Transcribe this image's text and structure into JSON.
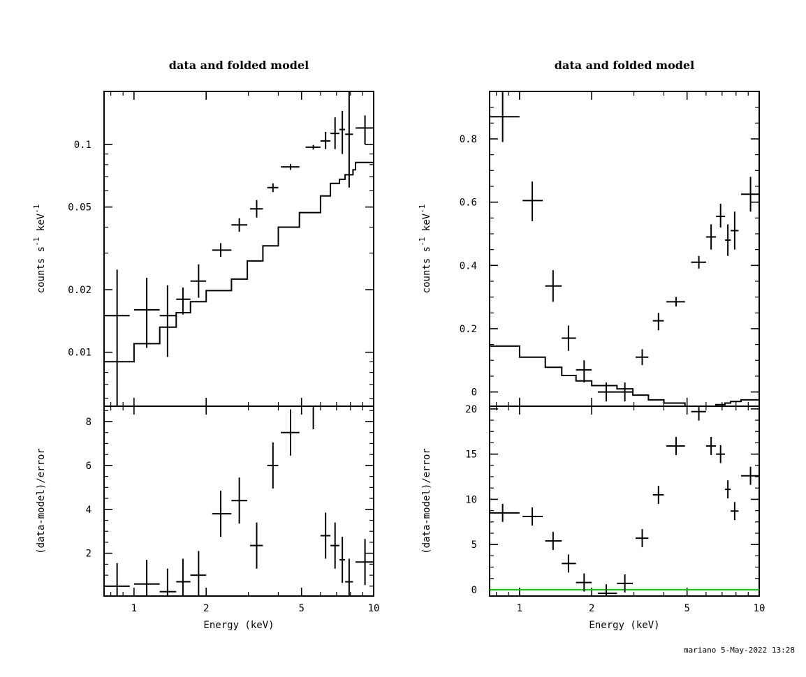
{
  "footer": "mariano  5-May-2022 13:28",
  "chart_data": [
    {
      "type": "scatter",
      "title": "data and folded model",
      "xlabel": "",
      "ylabel": "counts s^-1 keV^-1",
      "xscale": "log",
      "yscale": "log",
      "xlim": [
        0.75,
        10
      ],
      "ylim": [
        0.0055,
        0.18
      ],
      "x_ticks": [],
      "y_ticks": [
        "0.01",
        "0.02",
        "0.05",
        "0.1"
      ],
      "y_tick_values": [
        0.01,
        0.02,
        0.05,
        0.1
      ],
      "data": [
        {
          "x": 0.85,
          "xlo": 0.75,
          "xhi": 0.96,
          "y": 0.015,
          "ylo": 0.0055,
          "yhi": 0.025
        },
        {
          "x": 1.13,
          "xlo": 1.0,
          "xhi": 1.28,
          "y": 0.016,
          "ylo": 0.0105,
          "yhi": 0.0228
        },
        {
          "x": 1.38,
          "xlo": 1.28,
          "xhi": 1.5,
          "y": 0.015,
          "ylo": 0.0095,
          "yhi": 0.021
        },
        {
          "x": 1.6,
          "xlo": 1.5,
          "xhi": 1.72,
          "y": 0.018,
          "ylo": 0.0152,
          "yhi": 0.0205
        },
        {
          "x": 1.86,
          "xlo": 1.72,
          "xhi": 2.0,
          "y": 0.022,
          "ylo": 0.0183,
          "yhi": 0.0265
        },
        {
          "x": 2.3,
          "xlo": 2.12,
          "xhi": 2.55,
          "y": 0.031,
          "ylo": 0.0288,
          "yhi": 0.0335
        },
        {
          "x": 2.75,
          "xlo": 2.55,
          "xhi": 2.97,
          "y": 0.041,
          "ylo": 0.038,
          "yhi": 0.0442
        },
        {
          "x": 3.25,
          "xlo": 3.05,
          "xhi": 3.45,
          "y": 0.049,
          "ylo": 0.0445,
          "yhi": 0.054
        },
        {
          "x": 3.8,
          "xlo": 3.6,
          "xhi": 4.0,
          "y": 0.062,
          "ylo": 0.059,
          "yhi": 0.065
        },
        {
          "x": 4.5,
          "xlo": 4.1,
          "xhi": 4.9,
          "y": 0.078,
          "ylo": 0.0755,
          "yhi": 0.0805
        },
        {
          "x": 5.6,
          "xlo": 5.2,
          "xhi": 6.0,
          "y": 0.097,
          "ylo": 0.0945,
          "yhi": 0.0995
        },
        {
          "x": 6.3,
          "xlo": 6.0,
          "xhi": 6.6,
          "y": 0.104,
          "ylo": 0.095,
          "yhi": 0.115
        },
        {
          "x": 6.9,
          "xlo": 6.6,
          "xhi": 7.2,
          "y": 0.113,
          "ylo": 0.095,
          "yhi": 0.135
        },
        {
          "x": 7.4,
          "xlo": 7.2,
          "xhi": 7.6,
          "y": 0.118,
          "ylo": 0.09,
          "yhi": 0.145
        },
        {
          "x": 7.9,
          "xlo": 7.6,
          "xhi": 8.2,
          "y": 0.112,
          "ylo": 0.062,
          "yhi": 0.18
        },
        {
          "x": 9.2,
          "xlo": 8.4,
          "xhi": 10.0,
          "y": 0.12,
          "ylo": 0.1,
          "yhi": 0.138
        }
      ],
      "model": [
        [
          0.75,
          0.009
        ],
        [
          1.0,
          0.009
        ],
        [
          1.0,
          0.011
        ],
        [
          1.28,
          0.011
        ],
        [
          1.28,
          0.0132
        ],
        [
          1.5,
          0.0132
        ],
        [
          1.5,
          0.0155
        ],
        [
          1.72,
          0.0155
        ],
        [
          1.72,
          0.0175
        ],
        [
          2.0,
          0.0175
        ],
        [
          2.0,
          0.0198
        ],
        [
          2.55,
          0.0198
        ],
        [
          2.55,
          0.0225
        ],
        [
          2.97,
          0.0225
        ],
        [
          2.97,
          0.0275
        ],
        [
          3.45,
          0.0275
        ],
        [
          3.45,
          0.0325
        ],
        [
          4.0,
          0.0325
        ],
        [
          4.0,
          0.04
        ],
        [
          4.9,
          0.04
        ],
        [
          4.9,
          0.047
        ],
        [
          6.0,
          0.047
        ],
        [
          6.0,
          0.0565
        ],
        [
          6.6,
          0.0565
        ],
        [
          6.6,
          0.065
        ],
        [
          7.2,
          0.065
        ],
        [
          7.2,
          0.068
        ],
        [
          7.6,
          0.068
        ],
        [
          7.6,
          0.0715
        ],
        [
          8.2,
          0.0715
        ],
        [
          8.2,
          0.0755
        ],
        [
          8.4,
          0.0755
        ],
        [
          8.4,
          0.082
        ],
        [
          10.0,
          0.082
        ]
      ]
    },
    {
      "type": "scatter",
      "title": "",
      "xlabel": "Energy (keV)",
      "ylabel": "(data-model)/error",
      "xscale": "log",
      "yscale": "linear",
      "xlim": [
        0.75,
        10
      ],
      "ylim": [
        0.05,
        8.7
      ],
      "x_ticks": [
        "1",
        "2",
        "5",
        "10"
      ],
      "x_tick_values": [
        1,
        2,
        5,
        10
      ],
      "y_ticks": [
        "2",
        "4",
        "6",
        "8"
      ],
      "y_tick_values": [
        2,
        4,
        6,
        8
      ],
      "data": [
        {
          "x": 0.85,
          "xlo": 0.75,
          "xhi": 0.96,
          "y": 0.5,
          "ylo": 0.05,
          "yhi": 1.55
        },
        {
          "x": 1.13,
          "xlo": 1.0,
          "xhi": 1.28,
          "y": 0.6,
          "ylo": 0.05,
          "yhi": 1.7
        },
        {
          "x": 1.38,
          "xlo": 1.28,
          "xhi": 1.5,
          "y": 0.25,
          "ylo": 0.05,
          "yhi": 1.3
        },
        {
          "x": 1.6,
          "xlo": 1.5,
          "xhi": 1.72,
          "y": 0.7,
          "ylo": 0.05,
          "yhi": 1.75
        },
        {
          "x": 1.86,
          "xlo": 1.72,
          "xhi": 2.0,
          "y": 1.0,
          "ylo": 0.05,
          "yhi": 2.1
        },
        {
          "x": 2.3,
          "xlo": 2.12,
          "xhi": 2.55,
          "y": 3.8,
          "ylo": 2.75,
          "yhi": 4.85
        },
        {
          "x": 2.75,
          "xlo": 2.55,
          "xhi": 2.97,
          "y": 4.4,
          "ylo": 3.35,
          "yhi": 5.45
        },
        {
          "x": 3.25,
          "xlo": 3.05,
          "xhi": 3.45,
          "y": 2.35,
          "ylo": 1.3,
          "yhi": 3.4
        },
        {
          "x": 3.8,
          "xlo": 3.6,
          "xhi": 4.0,
          "y": 6.0,
          "ylo": 4.95,
          "yhi": 7.05
        },
        {
          "x": 4.5,
          "xlo": 4.1,
          "xhi": 4.9,
          "y": 7.5,
          "ylo": 6.45,
          "yhi": 8.55
        },
        {
          "x": 5.6,
          "xlo": 5.2,
          "xhi": 6.0,
          "y": 8.7,
          "ylo": 7.65,
          "yhi": 8.7
        },
        {
          "x": 6.3,
          "xlo": 6.0,
          "xhi": 6.6,
          "y": 2.8,
          "ylo": 1.75,
          "yhi": 3.85
        },
        {
          "x": 6.9,
          "xlo": 6.6,
          "xhi": 7.2,
          "y": 2.35,
          "ylo": 1.3,
          "yhi": 3.4
        },
        {
          "x": 7.4,
          "xlo": 7.2,
          "xhi": 7.6,
          "y": 1.7,
          "ylo": 0.65,
          "yhi": 2.75
        },
        {
          "x": 7.9,
          "xlo": 7.6,
          "xhi": 8.2,
          "y": 0.7,
          "ylo": 0.05,
          "yhi": 1.75
        },
        {
          "x": 9.2,
          "xlo": 8.4,
          "xhi": 10.0,
          "y": 1.6,
          "ylo": 0.55,
          "yhi": 2.65
        }
      ]
    },
    {
      "type": "scatter",
      "title": "data and folded model",
      "xlabel": "",
      "ylabel": "counts s^-1 keV^-1",
      "xscale": "log",
      "yscale": "linear",
      "xlim": [
        0.75,
        10
      ],
      "ylim": [
        -0.045,
        0.95
      ],
      "x_ticks": [],
      "y_ticks": [
        "0",
        "0.2",
        "0.4",
        "0.6",
        "0.8"
      ],
      "y_tick_values": [
        0,
        0.2,
        0.4,
        0.6,
        0.8
      ],
      "data": [
        {
          "x": 0.85,
          "xlo": 0.75,
          "xhi": 1.0,
          "y": 0.87,
          "ylo": 0.79,
          "yhi": 0.95
        },
        {
          "x": 1.13,
          "xlo": 1.03,
          "xhi": 1.25,
          "y": 0.605,
          "ylo": 0.54,
          "yhi": 0.665
        },
        {
          "x": 1.38,
          "xlo": 1.28,
          "xhi": 1.5,
          "y": 0.335,
          "ylo": 0.285,
          "yhi": 0.385
        },
        {
          "x": 1.6,
          "xlo": 1.5,
          "xhi": 1.72,
          "y": 0.17,
          "ylo": 0.13,
          "yhi": 0.21
        },
        {
          "x": 1.86,
          "xlo": 1.72,
          "xhi": 2.0,
          "y": 0.07,
          "ylo": 0.03,
          "yhi": 0.1
        },
        {
          "x": 2.3,
          "xlo": 2.12,
          "xhi": 2.55,
          "y": 0.0,
          "ylo": -0.03,
          "yhi": 0.03
        },
        {
          "x": 2.75,
          "xlo": 2.55,
          "xhi": 2.97,
          "y": 0.0,
          "ylo": -0.03,
          "yhi": 0.03
        },
        {
          "x": 3.25,
          "xlo": 3.05,
          "xhi": 3.45,
          "y": 0.11,
          "ylo": 0.085,
          "yhi": 0.135
        },
        {
          "x": 3.8,
          "xlo": 3.6,
          "xhi": 4.0,
          "y": 0.225,
          "ylo": 0.195,
          "yhi": 0.25
        },
        {
          "x": 4.5,
          "xlo": 4.1,
          "xhi": 4.9,
          "y": 0.285,
          "ylo": 0.27,
          "yhi": 0.3
        },
        {
          "x": 5.6,
          "xlo": 5.2,
          "xhi": 6.0,
          "y": 0.41,
          "ylo": 0.39,
          "yhi": 0.43
        },
        {
          "x": 6.3,
          "xlo": 6.0,
          "xhi": 6.6,
          "y": 0.49,
          "ylo": 0.45,
          "yhi": 0.53
        },
        {
          "x": 6.9,
          "xlo": 6.6,
          "xhi": 7.2,
          "y": 0.555,
          "ylo": 0.52,
          "yhi": 0.595
        },
        {
          "x": 7.4,
          "xlo": 7.2,
          "xhi": 7.6,
          "y": 0.48,
          "ylo": 0.43,
          "yhi": 0.53
        },
        {
          "x": 7.9,
          "xlo": 7.6,
          "xhi": 8.2,
          "y": 0.51,
          "ylo": 0.45,
          "yhi": 0.57
        },
        {
          "x": 9.2,
          "xlo": 8.4,
          "xhi": 10.0,
          "y": 0.625,
          "ylo": 0.57,
          "yhi": 0.68
        }
      ],
      "model": [
        [
          0.75,
          0.145
        ],
        [
          1.0,
          0.145
        ],
        [
          1.0,
          0.11
        ],
        [
          1.28,
          0.11
        ],
        [
          1.28,
          0.078
        ],
        [
          1.5,
          0.078
        ],
        [
          1.5,
          0.052
        ],
        [
          1.72,
          0.052
        ],
        [
          1.72,
          0.035
        ],
        [
          2.0,
          0.035
        ],
        [
          2.0,
          0.02
        ],
        [
          2.55,
          0.02
        ],
        [
          2.55,
          0.01
        ],
        [
          2.97,
          0.01
        ],
        [
          2.97,
          -0.01
        ],
        [
          3.45,
          -0.01
        ],
        [
          3.45,
          -0.025
        ],
        [
          4.0,
          -0.025
        ],
        [
          4.0,
          -0.035
        ],
        [
          4.9,
          -0.035
        ],
        [
          4.9,
          -0.045
        ],
        [
          6.0,
          -0.045
        ],
        [
          6.0,
          -0.045
        ],
        [
          6.6,
          -0.045
        ],
        [
          6.6,
          -0.04
        ],
        [
          7.2,
          -0.04
        ],
        [
          7.2,
          -0.035
        ],
        [
          7.6,
          -0.035
        ],
        [
          7.6,
          -0.03
        ],
        [
          8.4,
          -0.03
        ],
        [
          8.4,
          -0.025
        ],
        [
          10.0,
          -0.025
        ]
      ]
    },
    {
      "type": "scatter",
      "title": "",
      "xlabel": "Energy (keV)",
      "ylabel": "(data-model)/error",
      "xscale": "log",
      "yscale": "linear",
      "xlim": [
        0.75,
        10
      ],
      "ylim": [
        -0.7,
        20.3
      ],
      "x_ticks": [
        "1",
        "2",
        "5",
        "10"
      ],
      "x_tick_values": [
        1,
        2,
        5,
        10
      ],
      "y_ticks": [
        "0",
        "5",
        "10",
        "15",
        "20"
      ],
      "y_tick_values": [
        0,
        5,
        10,
        15,
        20
      ],
      "zero_line_color": "#00cc00",
      "data": [
        {
          "x": 0.85,
          "xlo": 0.75,
          "xhi": 1.0,
          "y": 8.5,
          "ylo": 7.5,
          "yhi": 9.5
        },
        {
          "x": 1.13,
          "xlo": 1.03,
          "xhi": 1.25,
          "y": 8.1,
          "ylo": 7.1,
          "yhi": 9.1
        },
        {
          "x": 1.38,
          "xlo": 1.28,
          "xhi": 1.5,
          "y": 5.4,
          "ylo": 4.4,
          "yhi": 6.4
        },
        {
          "x": 1.6,
          "xlo": 1.5,
          "xhi": 1.72,
          "y": 2.9,
          "ylo": 1.9,
          "yhi": 3.9
        },
        {
          "x": 1.86,
          "xlo": 1.72,
          "xhi": 2.0,
          "y": 0.8,
          "ylo": -0.2,
          "yhi": 1.8
        },
        {
          "x": 2.3,
          "xlo": 2.12,
          "xhi": 2.55,
          "y": -0.4,
          "ylo": -0.7,
          "yhi": 0.6
        },
        {
          "x": 2.75,
          "xlo": 2.55,
          "xhi": 2.97,
          "y": 0.7,
          "ylo": -0.3,
          "yhi": 1.7
        },
        {
          "x": 3.25,
          "xlo": 3.05,
          "xhi": 3.45,
          "y": 5.7,
          "ylo": 4.7,
          "yhi": 6.7
        },
        {
          "x": 3.8,
          "xlo": 3.6,
          "xhi": 4.0,
          "y": 10.5,
          "ylo": 9.5,
          "yhi": 11.5
        },
        {
          "x": 4.5,
          "xlo": 4.1,
          "xhi": 4.9,
          "y": 15.9,
          "ylo": 14.9,
          "yhi": 16.9
        },
        {
          "x": 5.6,
          "xlo": 5.2,
          "xhi": 6.0,
          "y": 19.7,
          "ylo": 18.7,
          "yhi": 20.3
        },
        {
          "x": 6.3,
          "xlo": 6.0,
          "xhi": 6.6,
          "y": 15.9,
          "ylo": 14.9,
          "yhi": 16.9
        },
        {
          "x": 6.9,
          "xlo": 6.6,
          "xhi": 7.2,
          "y": 15.0,
          "ylo": 14.0,
          "yhi": 16.0
        },
        {
          "x": 7.4,
          "xlo": 7.2,
          "xhi": 7.6,
          "y": 11.1,
          "ylo": 10.1,
          "yhi": 12.1
        },
        {
          "x": 7.9,
          "xlo": 7.6,
          "xhi": 8.2,
          "y": 8.7,
          "ylo": 7.7,
          "yhi": 9.7
        },
        {
          "x": 9.2,
          "xlo": 8.4,
          "xhi": 10.0,
          "y": 12.6,
          "ylo": 11.6,
          "yhi": 13.6
        }
      ]
    }
  ]
}
